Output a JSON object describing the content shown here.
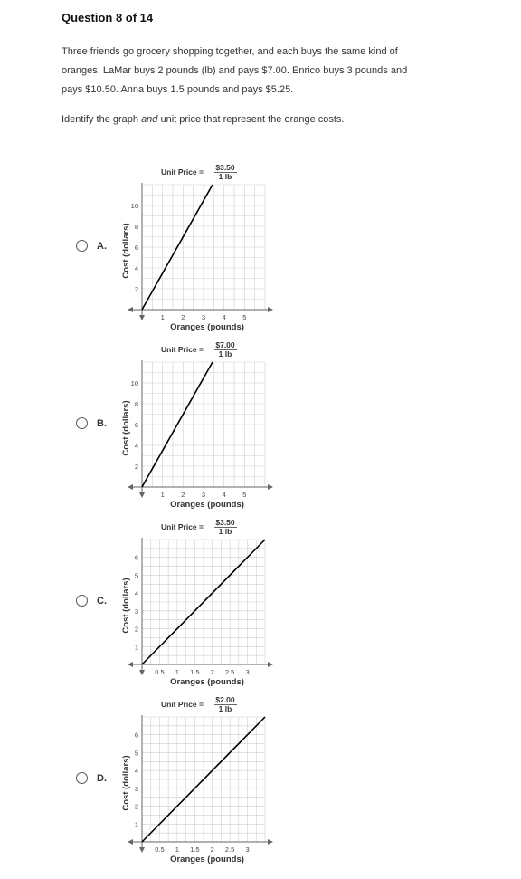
{
  "question": {
    "header": "Question 8 of 14",
    "prompt_lines": [
      "Three friends go grocery shopping together, and each buys the same kind of",
      "oranges. LaMar buys 2 pounds (lb) and pays $7.00. Enrico buys 3 pounds and",
      "pays $10.50. Anna buys 1.5 pounds and pays $5.25."
    ],
    "instruction_pre": "Identify the graph ",
    "instruction_em": "and",
    "instruction_post": " unit price that represent the orange costs."
  },
  "options": [
    {
      "letter": "A.",
      "unit_price_label": "Unit Price =",
      "unit_price_num": "$3.50",
      "unit_price_den": "1 lb"
    },
    {
      "letter": "B.",
      "unit_price_label": "Unit Price =",
      "unit_price_num": "$7.00",
      "unit_price_den": "1 lb"
    },
    {
      "letter": "C.",
      "unit_price_label": "Unit Price =",
      "unit_price_num": "$3.50",
      "unit_price_den": "1 lb"
    },
    {
      "letter": "D.",
      "unit_price_label": "Unit Price =",
      "unit_price_num": "$2.00",
      "unit_price_den": "1 lb"
    }
  ],
  "chart_data": [
    {
      "type": "line",
      "xlabel": "Oranges (pounds)",
      "ylabel": "Cost (dollars)",
      "xlim": [
        0,
        6
      ],
      "ylim": [
        0,
        12
      ],
      "grid": true,
      "x_ticks": [
        "1",
        "2",
        "3",
        "4",
        "5"
      ],
      "y_ticks": [
        "2",
        "4",
        "6",
        "8",
        "10"
      ],
      "series": [
        {
          "x": [
            0,
            3.44
          ],
          "y": [
            0,
            12
          ]
        }
      ]
    },
    {
      "type": "line",
      "xlabel": "Oranges (pounds)",
      "ylabel": "Cost (dollars)",
      "xlim": [
        0,
        6
      ],
      "ylim": [
        0,
        12
      ],
      "grid": true,
      "x_ticks": [
        "1",
        "2",
        "3",
        "4",
        "5"
      ],
      "y_ticks": [
        "2",
        "4",
        "6",
        "8",
        "10"
      ],
      "series": [
        {
          "x": [
            0,
            3.44
          ],
          "y": [
            0,
            12
          ]
        }
      ]
    },
    {
      "type": "line",
      "xlabel": "Oranges (pounds)",
      "ylabel": "Cost (dollars)",
      "xlim": [
        0,
        3.5
      ],
      "ylim": [
        0,
        7
      ],
      "grid": true,
      "x_ticks": [
        "0.5",
        "1",
        "1.5",
        "2",
        "2.5",
        "3"
      ],
      "y_ticks": [
        "1",
        "2",
        "3",
        "4",
        "5",
        "6"
      ],
      "series": [
        {
          "x": [
            0,
            3.5
          ],
          "y": [
            0,
            7
          ]
        }
      ]
    },
    {
      "type": "line",
      "xlabel": "Oranges (pounds)",
      "ylabel": "Cost (dollars)",
      "xlim": [
        0,
        3.5
      ],
      "ylim": [
        0,
        7
      ],
      "grid": true,
      "x_ticks": [
        "0.5",
        "1",
        "1.5",
        "2",
        "2.5",
        "3"
      ],
      "y_ticks": [
        "1",
        "2",
        "3",
        "4",
        "5",
        "6"
      ],
      "series": [
        {
          "x": [
            0,
            3.5
          ],
          "y": [
            0,
            7
          ]
        }
      ]
    }
  ]
}
